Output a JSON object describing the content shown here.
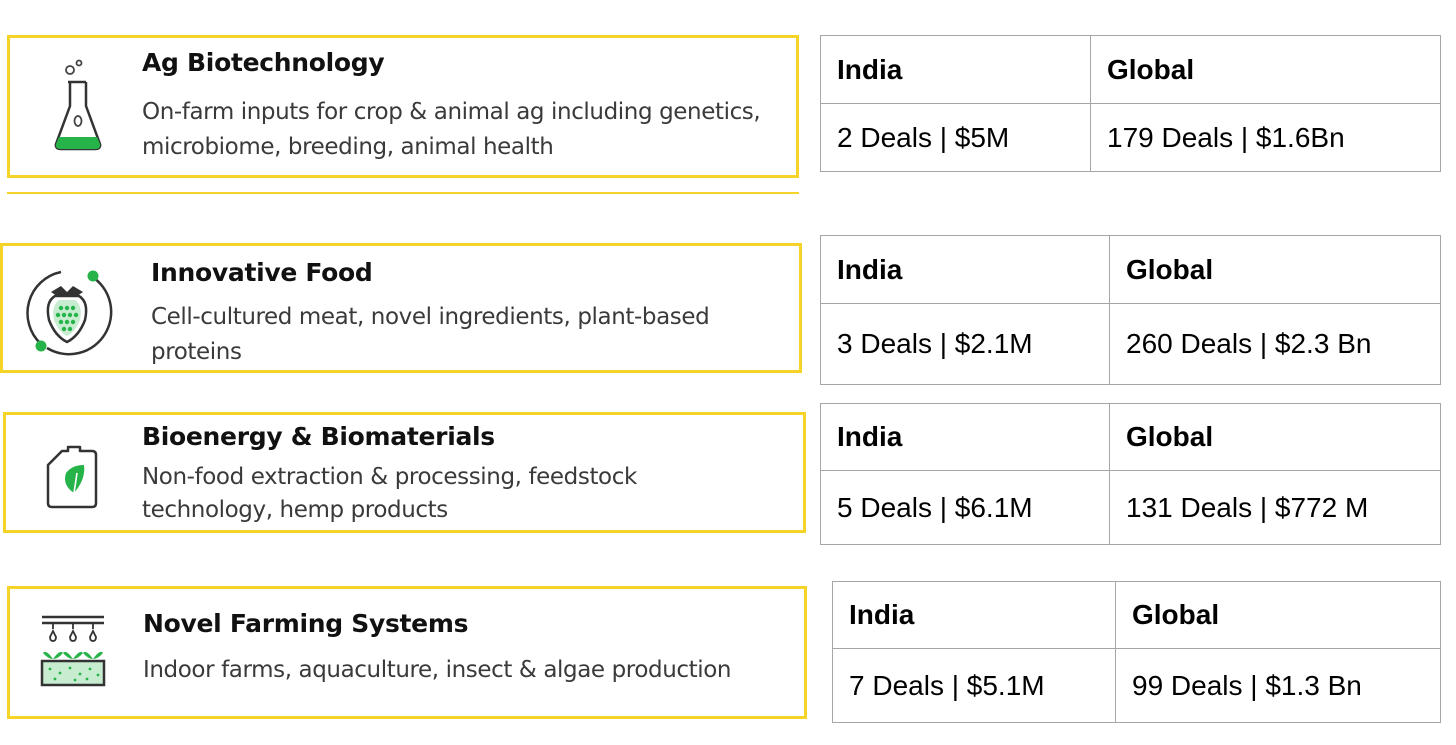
{
  "sectors": [
    {
      "icon": "flask-icon",
      "title": "Ag Biotechnology",
      "description": "On-farm inputs for crop & animal ag including genetics, microbiome, breeding, animal health",
      "table": {
        "header_left": "India",
        "header_right": "Global",
        "india": "2 Deals | $5M",
        "global": "179 Deals | $1.6Bn"
      }
    },
    {
      "icon": "strawberry-icon",
      "title": "Innovative Food",
      "description": "Cell-cultured meat, novel ingredients, plant-based proteins",
      "table": {
        "header_left": "India",
        "header_right": "Global",
        "india": "3 Deals | $2.1M",
        "global": "260 Deals | $2.3 Bn"
      }
    },
    {
      "icon": "fuel-canister-icon",
      "title": "Bioenergy & Biomaterials",
      "description": "Non-food extraction & processing, feedstock technology, hemp products",
      "table": {
        "header_left": "India",
        "header_right": "Global",
        "india": "5 Deals | $6.1M",
        "global": "131 Deals | $772 M"
      }
    },
    {
      "icon": "indoor-farm-icon",
      "title": "Novel Farming Systems",
      "description": "Indoor farms, aquaculture, insect & algae production",
      "table": {
        "header_left": "India",
        "header_right": "Global",
        "india": "7 Deals | $5.1M",
        "global": "99 Deals | $1.3 Bn"
      }
    }
  ]
}
